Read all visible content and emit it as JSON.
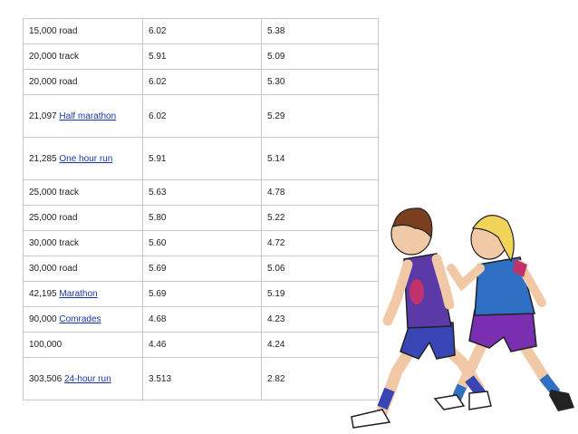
{
  "table": {
    "rows": [
      {
        "distance": "15,000",
        "event": "road",
        "event_is_link": false,
        "men": "6.02",
        "women": "5.38"
      },
      {
        "distance": "20,000",
        "event": "track",
        "event_is_link": false,
        "men": "5.91",
        "women": "5.09"
      },
      {
        "distance": "20,000",
        "event": "road",
        "event_is_link": false,
        "men": "6.02",
        "women": "5.30"
      },
      {
        "distance": "21,097",
        "event": "Half marathon",
        "event_is_link": true,
        "men": "6.02",
        "women": "5.29"
      },
      {
        "distance": "21,285",
        "event": "One hour run",
        "event_is_link": true,
        "men": "5.91",
        "women": "5.14"
      },
      {
        "distance": "25,000",
        "event": "track",
        "event_is_link": false,
        "men": "5.63",
        "women": "4.78"
      },
      {
        "distance": "25,000",
        "event": "road",
        "event_is_link": false,
        "men": "5.80",
        "women": "5.22"
      },
      {
        "distance": "30,000",
        "event": "track",
        "event_is_link": false,
        "men": "5.60",
        "women": "4.72"
      },
      {
        "distance": "30,000",
        "event": "road",
        "event_is_link": false,
        "men": "5.69",
        "women": "5.06"
      },
      {
        "distance": "42,195",
        "event": "Marathon",
        "event_is_link": true,
        "men": "5.69",
        "women": "5.19"
      },
      {
        "distance": "90,000",
        "event": "Comrades",
        "event_is_link": true,
        "men": "4.68",
        "women": "4.23"
      },
      {
        "distance": "100,000",
        "event": "",
        "event_is_link": false,
        "men": "4.46",
        "women": "4.24"
      },
      {
        "distance": "303,506",
        "event": "24-hour run",
        "event_is_link": true,
        "men": "3.513",
        "women": "2.82"
      }
    ]
  },
  "illustration": {
    "icon": "runners-clipart-icon"
  },
  "colors": {
    "link": "#1a35a8",
    "border": "#c8c8c8"
  }
}
